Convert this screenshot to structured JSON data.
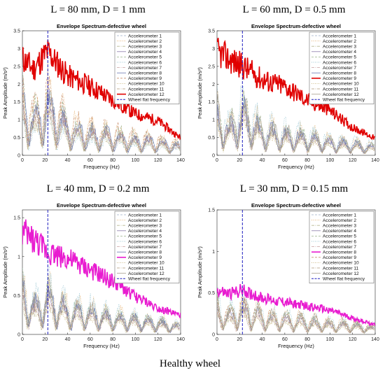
{
  "figure": {
    "captions": [
      "L = 80 mm, D = 1 mm",
      "L = 60 mm, D = 0.5 mm",
      "L = 40 mm, D = 0.2 mm",
      "L = 30 mm, D = 0.15 mm"
    ],
    "bottom_caption": "Healthy wheel"
  },
  "colors": {
    "accelerometers": [
      "#9fb0c8",
      "#e0a050",
      "#b8b890",
      "#8a7aa8",
      "#98b088",
      "#7fb8c8",
      "#c8a0a0",
      "#6a78b0",
      "#c89070",
      "#c0a868",
      "#b09878",
      "#a8a090"
    ],
    "highlight_red": "#e00000",
    "highlight_magenta": "#e81cd0",
    "wheel_flat": "#2020c0"
  },
  "chart_data": [
    {
      "type": "line",
      "title": "Envelope Spectrum-defective wheel",
      "xlabel": "Frequency (Hz)",
      "ylabel": "Peak Amplitude (m/s²)",
      "xlim": [
        0,
        140
      ],
      "ylim": [
        0,
        3.5
      ],
      "xticks": [
        "0",
        "20",
        "40",
        "60",
        "80",
        "100",
        "120",
        "140"
      ],
      "yticks": [
        "0",
        "0.5",
        "1",
        "1.5",
        "2",
        "2.5",
        "3",
        "3.5"
      ],
      "highlight_series": 12,
      "highlight_color": "#e00000",
      "wheel_flat_frequency": 22.5,
      "legend": [
        "Accelerometer 1",
        "Accelerometer 2",
        "Accelerometer 3",
        "Accelerometer 4",
        "Accelerometer 5",
        "Accelerometer 6",
        "Accelerometer 7",
        "Accelerometer 8",
        "Accelerometer 9",
        "Accelerometer 10",
        "Accelerometer 11",
        "Accelerometer 12",
        "Wheel flat frequency"
      ],
      "series_envelope": {
        "highlight": [
          [
            0,
            2.8
          ],
          [
            10,
            2.5
          ],
          [
            22,
            3.0
          ],
          [
            40,
            2.3
          ],
          [
            60,
            2.0
          ],
          [
            80,
            1.6
          ],
          [
            100,
            1.2
          ],
          [
            120,
            1.0
          ],
          [
            140,
            0.5
          ]
        ],
        "others_peak": [
          [
            0,
            2.4
          ],
          [
            10,
            1.6
          ],
          [
            22,
            2.3
          ],
          [
            40,
            1.3
          ],
          [
            60,
            1.0
          ],
          [
            80,
            0.9
          ],
          [
            100,
            0.7
          ],
          [
            120,
            0.6
          ],
          [
            140,
            0.4
          ]
        ]
      }
    },
    {
      "type": "line",
      "title": "Envelope Spectrum-defective wheel",
      "xlabel": "Frequency (Hz)",
      "ylabel": "Peak Amplitude (m/s²)",
      "xlim": [
        0,
        140
      ],
      "ylim": [
        0,
        3.5
      ],
      "xticks": [
        "0",
        "20",
        "40",
        "60",
        "80",
        "100",
        "120",
        "140"
      ],
      "yticks": [
        "0",
        "0.5",
        "1",
        "1.5",
        "2",
        "2.5",
        "3",
        "3.5"
      ],
      "highlight_series": 9,
      "highlight_color": "#e00000",
      "wheel_flat_frequency": 22.5,
      "legend": [
        "Accelerometer 1",
        "Accelerometer 2",
        "Accelerometer 3",
        "Accelerometer 4",
        "Accelerometer 5",
        "Accelerometer 6",
        "Accelerometer 7",
        "Accelerometer 8",
        "Accelerometer 9",
        "Accelerometer 10",
        "Accelerometer 11",
        "Accelerometer 12",
        "Wheel flat frequency"
      ],
      "series_envelope": {
        "highlight": [
          [
            0,
            3.0
          ],
          [
            10,
            2.8
          ],
          [
            22,
            2.6
          ],
          [
            40,
            2.2
          ],
          [
            60,
            2.0
          ],
          [
            80,
            1.6
          ],
          [
            100,
            1.3
          ],
          [
            120,
            0.8
          ],
          [
            140,
            0.5
          ]
        ],
        "others_peak": [
          [
            0,
            1.8
          ],
          [
            10,
            1.1
          ],
          [
            22,
            1.9
          ],
          [
            40,
            1.1
          ],
          [
            60,
            0.9
          ],
          [
            80,
            0.8
          ],
          [
            100,
            0.6
          ],
          [
            120,
            0.5
          ],
          [
            140,
            0.35
          ]
        ]
      }
    },
    {
      "type": "line",
      "title": "Envelope Spectrum-defective wheel",
      "xlabel": "Frequency (Hz)",
      "ylabel": "Peak Amplitude (m/s²)",
      "xlim": [
        0,
        140
      ],
      "ylim": [
        0,
        1.6
      ],
      "xticks": [
        "0",
        "20",
        "40",
        "60",
        "80",
        "100",
        "120",
        "140"
      ],
      "yticks": [
        "0",
        "0.5",
        "1",
        "1.5"
      ],
      "highlight_series": 9,
      "highlight_color": "#e81cd0",
      "wheel_flat_frequency": 22.5,
      "legend": [
        "Accelerometer 1",
        "Accelerometer 2",
        "Accelerometer 3",
        "Accelerometer 4",
        "Accelerometer 5",
        "Accelerometer 6",
        "Accelerometer 7",
        "Accelerometer 8",
        "Accelerometer 9",
        "Accelerometer 10",
        "Accelerometer 11",
        "Accelerometer 12",
        "Wheel flat frequency"
      ],
      "series_envelope": {
        "highlight": [
          [
            0,
            1.35
          ],
          [
            10,
            1.25
          ],
          [
            22,
            1.1
          ],
          [
            40,
            1.0
          ],
          [
            60,
            0.85
          ],
          [
            80,
            0.7
          ],
          [
            100,
            0.5
          ],
          [
            120,
            0.35
          ],
          [
            140,
            0.25
          ]
        ],
        "others_peak": [
          [
            0,
            0.9
          ],
          [
            10,
            0.55
          ],
          [
            22,
            0.75
          ],
          [
            40,
            0.5
          ],
          [
            60,
            0.45
          ],
          [
            80,
            0.35
          ],
          [
            100,
            0.3
          ],
          [
            120,
            0.25
          ],
          [
            140,
            0.15
          ]
        ]
      }
    },
    {
      "type": "line",
      "title": "Envelope Spectrum-defective wheel",
      "xlabel": "Frequency (Hz)",
      "ylabel": "Peak Amplitude (m/s²)",
      "xlim": [
        0,
        140
      ],
      "ylim": [
        0,
        1.5
      ],
      "xticks": [
        "0",
        "20",
        "40",
        "60",
        "80",
        "100",
        "120",
        "140"
      ],
      "yticks": [
        "0",
        "0.5",
        "1",
        "1.5"
      ],
      "highlight_series": 8,
      "highlight_color": "#e81cd0",
      "wheel_flat_frequency": 22.5,
      "legend": [
        "Accelerometer 1",
        "Accelerometer 2",
        "Accelerometer 3",
        "Accelerometer 4",
        "Accelerometer 5",
        "Accelerometer 6",
        "Accelerometer 7",
        "Accelerometer 8",
        "Accelerometer 9",
        "Accelerometer 10",
        "Accelerometer 11",
        "Accelerometer 12",
        "Wheel flat frequency"
      ],
      "series_envelope": {
        "highlight": [
          [
            0,
            0.55
          ],
          [
            10,
            0.5
          ],
          [
            22,
            0.55
          ],
          [
            40,
            0.45
          ],
          [
            60,
            0.4
          ],
          [
            80,
            0.35
          ],
          [
            100,
            0.3
          ],
          [
            120,
            0.2
          ],
          [
            140,
            0.12
          ]
        ],
        "others_peak": [
          [
            0,
            0.5
          ],
          [
            10,
            0.35
          ],
          [
            22,
            0.5
          ],
          [
            40,
            0.35
          ],
          [
            60,
            0.3
          ],
          [
            80,
            0.25
          ],
          [
            100,
            0.2
          ],
          [
            120,
            0.18
          ],
          [
            140,
            0.12
          ]
        ]
      }
    }
  ]
}
